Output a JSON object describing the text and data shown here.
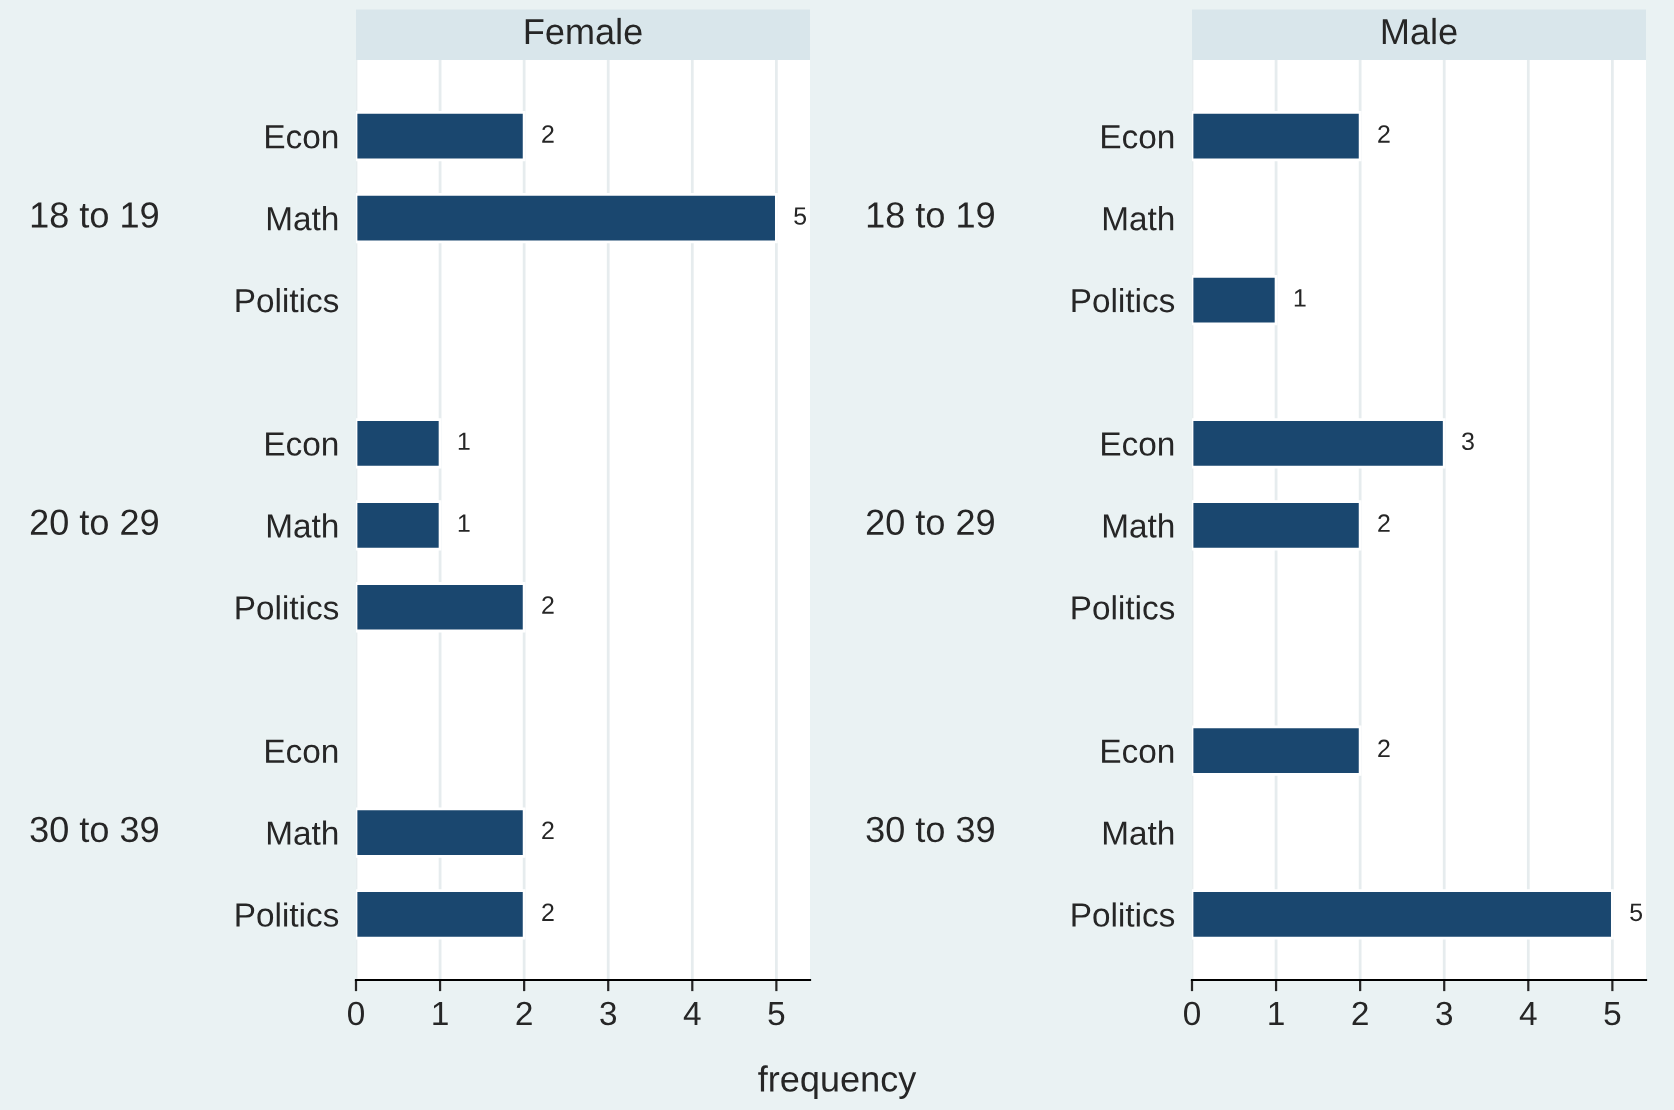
{
  "chart_data": [
    {
      "type": "bar",
      "orientation": "horizontal",
      "title": "Female",
      "xlabel": "frequency",
      "categories": [
        "Econ",
        "Math",
        "Politics",
        "Econ",
        "Math",
        "Politics",
        "Econ",
        "Math",
        "Politics"
      ],
      "values": [
        2,
        5,
        null,
        1,
        1,
        2,
        null,
        2,
        2
      ],
      "color": "#1a476f",
      "annotations": [
        "18 to 19",
        "20 to 29",
        "30 to 39"
      ],
      "xlim": [
        0,
        5.4
      ],
      "xticks": [
        0,
        1,
        2,
        3,
        4,
        5
      ],
      "grid": "x",
      "data_labels": true
    },
    {
      "type": "bar",
      "orientation": "horizontal",
      "title": "Male",
      "categories": [
        "Econ",
        "Math",
        "Politics",
        "Econ",
        "Math",
        "Politics",
        "Econ",
        "Math",
        "Politics"
      ],
      "values": [
        2,
        null,
        1,
        3,
        2,
        null,
        2,
        null,
        5
      ],
      "color": "#1a476f",
      "annotations": [
        "18 to 19",
        "20 to 29",
        "30 to 39"
      ],
      "xlim": [
        0,
        5.4
      ],
      "xticks": [
        0,
        1,
        2,
        3,
        4,
        5
      ],
      "grid": "x",
      "data_labels": true
    }
  ]
}
